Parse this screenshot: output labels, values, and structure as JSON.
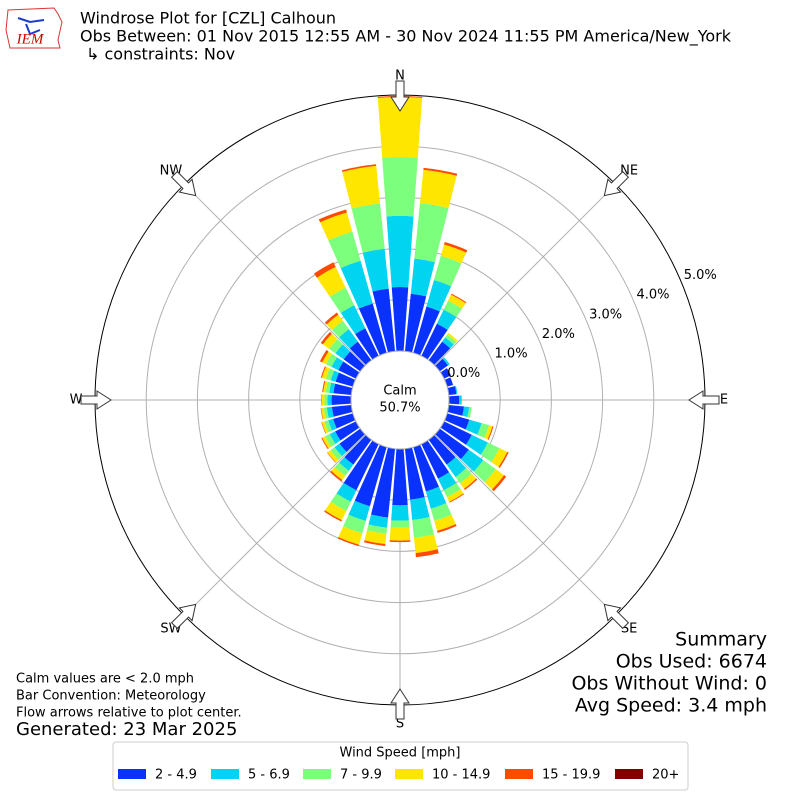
{
  "chart_data": {
    "type": "windrose",
    "title": [
      "Windrose Plot for [CZL] Calhoun",
      "Obs Between: 01 Nov 2015 12:55 AM - 30 Nov 2024 11:55 PM America/New_York",
      "↳ constraints: Nov"
    ],
    "calm_label": "Calm",
    "calm_value": "50.7%",
    "x": [
      0,
      10,
      20,
      30,
      40,
      50,
      60,
      70,
      80,
      90,
      100,
      110,
      120,
      130,
      140,
      150,
      160,
      170,
      180,
      190,
      200,
      210,
      220,
      230,
      240,
      250,
      260,
      270,
      280,
      290,
      300,
      310,
      320,
      330,
      340,
      350
    ],
    "xticks": [
      {
        "value": 0,
        "label": "N"
      },
      {
        "value": 45,
        "label": "NE"
      },
      {
        "value": 90,
        "label": "E"
      },
      {
        "value": 135,
        "label": "SE"
      },
      {
        "value": 180,
        "label": "S"
      },
      {
        "value": 225,
        "label": "SW"
      },
      {
        "value": 270,
        "label": "W"
      },
      {
        "value": 315,
        "label": "NW"
      }
    ],
    "ylim": [
      0,
      5
    ],
    "yticks": [
      {
        "value": 0,
        "label": "0.0%"
      },
      {
        "value": 1,
        "label": "1.0%"
      },
      {
        "value": 2,
        "label": "2.0%"
      },
      {
        "value": 3,
        "label": "3.0%"
      },
      {
        "value": 4,
        "label": "4.0%"
      },
      {
        "value": 5,
        "label": "5.0%"
      }
    ],
    "grid": true,
    "legend_title": "Wind Speed [mph]",
    "series": [
      {
        "name": "2 - 4.9",
        "color": "#0a32ff",
        "values": [
          1.25,
          1.13,
          0.94,
          0.7,
          0.45,
          0.2,
          0.15,
          0.12,
          0.15,
          0.2,
          0.3,
          0.45,
          0.6,
          0.7,
          0.6,
          0.75,
          0.9,
          1.0,
          1.1,
          1.35,
          1.2,
          1.0,
          0.6,
          0.5,
          0.45,
          0.4,
          0.38,
          0.38,
          0.35,
          0.35,
          0.38,
          0.4,
          0.45,
          0.6,
          1.0,
          1.23
        ]
      },
      {
        "name": "5 - 6.9",
        "color": "#00d4f0",
        "values": [
          1.39,
          0.69,
          0.54,
          0.3,
          0.1,
          0.04,
          0,
          0,
          0.02,
          0.05,
          0.1,
          0.25,
          0.35,
          0.35,
          0.3,
          0.25,
          0.35,
          0.4,
          0.3,
          0.2,
          0.3,
          0.25,
          0.15,
          0.12,
          0.12,
          0.1,
          0.1,
          0.08,
          0.08,
          0.1,
          0.15,
          0.2,
          0.3,
          0.5,
          0.87,
          0.78
        ]
      },
      {
        "name": "7 - 9.9",
        "color": "#7cff7c",
        "values": [
          1.15,
          1.09,
          0.49,
          0.2,
          0.07,
          0,
          0,
          0,
          0,
          0,
          0.05,
          0.15,
          0.25,
          0.3,
          0.15,
          0.15,
          0.25,
          0.35,
          0.14,
          0.12,
          0.25,
          0.2,
          0.12,
          0.1,
          0.1,
          0.08,
          0.06,
          0.06,
          0.07,
          0.1,
          0.12,
          0.15,
          0.2,
          0.38,
          0.59,
          0.89
        ]
      },
      {
        "name": "10 - 14.9",
        "color": "#ffe600",
        "values": [
          1.17,
          0.65,
          0.23,
          0.13,
          0.04,
          0,
          0,
          0,
          0,
          0,
          0,
          0.07,
          0.17,
          0.2,
          0.13,
          0.1,
          0.2,
          0.3,
          0.25,
          0.2,
          0.23,
          0.2,
          0.1,
          0.07,
          0.06,
          0.05,
          0.05,
          0.05,
          0.05,
          0.08,
          0.08,
          0.15,
          0.15,
          0.45,
          0.39,
          0.74
        ]
      },
      {
        "name": "15 - 19.9",
        "color": "#ff4a00",
        "values": [
          0.02,
          0.04,
          0.05,
          0.02,
          0,
          0,
          0,
          0,
          0,
          0,
          0,
          0.02,
          0.03,
          0.05,
          0.03,
          0.02,
          0.04,
          0.08,
          0.03,
          0.04,
          0.03,
          0.03,
          0.03,
          0.01,
          0.02,
          0.01,
          0.01,
          0.01,
          0.02,
          0.02,
          0.05,
          0.05,
          0.05,
          0.1,
          0.06,
          0.03
        ]
      },
      {
        "name": "20+",
        "color": "#800000",
        "values": [
          0,
          0,
          0,
          0,
          0,
          0,
          0,
          0,
          0,
          0,
          0,
          0,
          0,
          0,
          0,
          0,
          0,
          0,
          0,
          0,
          0,
          0,
          0,
          0,
          0,
          0,
          0,
          0,
          0,
          0,
          0,
          0,
          0,
          0,
          0,
          0
        ]
      }
    ],
    "notes": [
      "Calm values are < 2.0 mph",
      "Bar Convention: Meteorology",
      "Flow arrows relative to plot center."
    ],
    "generated": "Generated: 23 Mar 2025",
    "summary": [
      "Summary",
      "Obs Used: 6674",
      "Obs Without Wind: 0",
      "Avg Speed: 3.4 mph"
    ],
    "logo_text": "IEM"
  }
}
